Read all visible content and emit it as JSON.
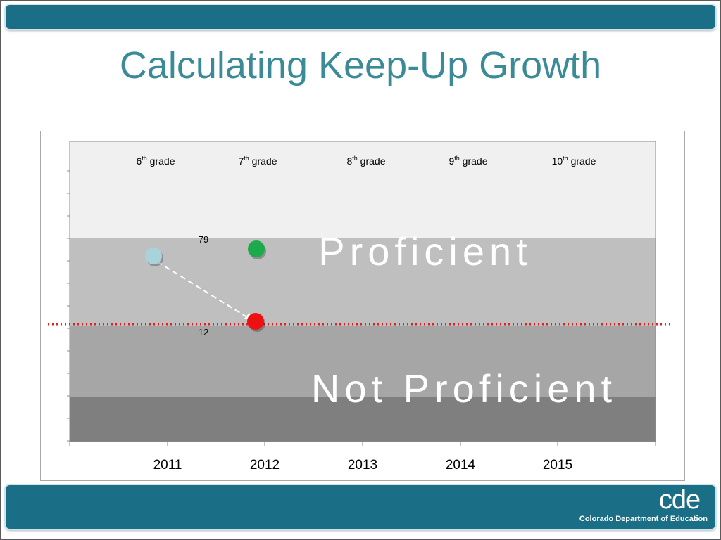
{
  "slide": {
    "title": "Calculating Keep-Up Growth",
    "logo_mark": "cde",
    "logo_name": "Colorado Department of Education"
  },
  "colors": {
    "header_bar": "#1a6e86",
    "title": "#3a8b97",
    "band_top": "#f0f0f0",
    "band_proficient": "#bfbfbf",
    "band_mid": "#a6a6a6",
    "band_bottom": "#7f7f7f",
    "cut_line": "#e02020",
    "point_start": "#a9d3db",
    "point_target": "#1daa4a",
    "point_keepup": "#ee1111"
  },
  "chart_data": {
    "type": "scatter",
    "x_categories": [
      "2011",
      "2012",
      "2013",
      "2014",
      "2015"
    ],
    "grade_labels": [
      {
        "base": "6",
        "sup": "th",
        "rest": " grade"
      },
      {
        "base": "7",
        "sup": "th",
        "rest": " grade"
      },
      {
        "base": "8",
        "sup": "th",
        "rest": " grade"
      },
      {
        "base": "9",
        "sup": "th",
        "rest": " grade"
      },
      {
        "base": "10",
        "sup": "th",
        "rest": " grade"
      }
    ],
    "region_labels": {
      "proficient": "Proficient",
      "not_proficient": "Not Proficient"
    },
    "points": [
      {
        "role": "start",
        "x": "2011",
        "label": ""
      },
      {
        "role": "target",
        "x": "2012",
        "label": "79"
      },
      {
        "role": "keep-up",
        "x": "2012",
        "label": "12"
      }
    ],
    "arrow": {
      "from": "start",
      "to": "keep-up",
      "style": "dashed"
    },
    "proficiency_cut_line": {
      "style": "dotted"
    },
    "grid": false,
    "legend": "none"
  }
}
